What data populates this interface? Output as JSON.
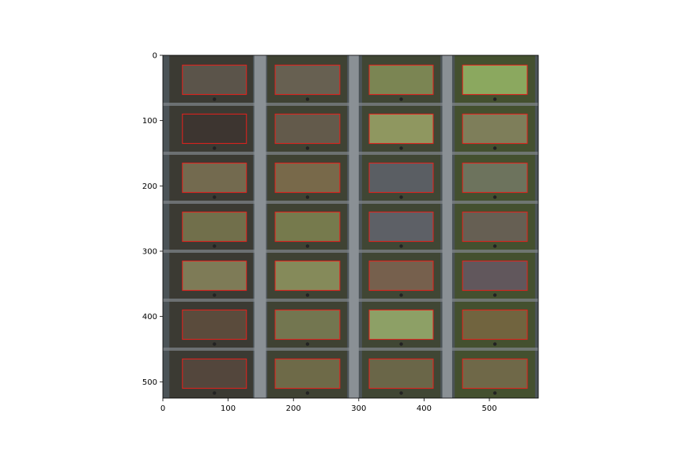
{
  "figure": {
    "description_type": "aerial plot image with rectangular regions of interest",
    "x_ticks": [
      "0",
      "100",
      "200",
      "300",
      "400",
      "500"
    ],
    "y_ticks": [
      "0",
      "100",
      "200",
      "300",
      "400",
      "500"
    ],
    "x_range": [
      0,
      575
    ],
    "y_range": [
      0,
      525
    ],
    "roi_color": "#e8201c",
    "colors": {
      "ground": "#4a5152",
      "road": "#8c9196",
      "soil_dark": "#2b2a28"
    }
  },
  "plots": {
    "columns_x": [
      [
        30,
        128
      ],
      [
        172,
        271
      ],
      [
        316,
        414
      ],
      [
        459,
        558
      ]
    ],
    "rows_y": [
      [
        15,
        60
      ],
      [
        90,
        135
      ],
      [
        165,
        210
      ],
      [
        240,
        285
      ],
      [
        315,
        360
      ],
      [
        390,
        435
      ],
      [
        465,
        510
      ]
    ],
    "fill_colors": [
      [
        "#5b544a",
        "#676051",
        "#7b8553",
        "#8ba85f"
      ],
      [
        "#3d3530",
        "#635a4b",
        "#8f9760",
        "#7e7e5a"
      ],
      [
        "#736a4f",
        "#78694a",
        "#5a5e63",
        "#6d735d"
      ],
      [
        "#716f4b",
        "#767a4d",
        "#5d6066",
        "#665f53"
      ],
      [
        "#7e7b57",
        "#858a5a",
        "#76604d",
        "#61575c"
      ],
      [
        "#5a4b3c",
        "#737650",
        "#8da066",
        "#71643f"
      ],
      [
        "#53463c",
        "#6e6a48",
        "#6a6648",
        "#6f6848"
      ]
    ]
  }
}
